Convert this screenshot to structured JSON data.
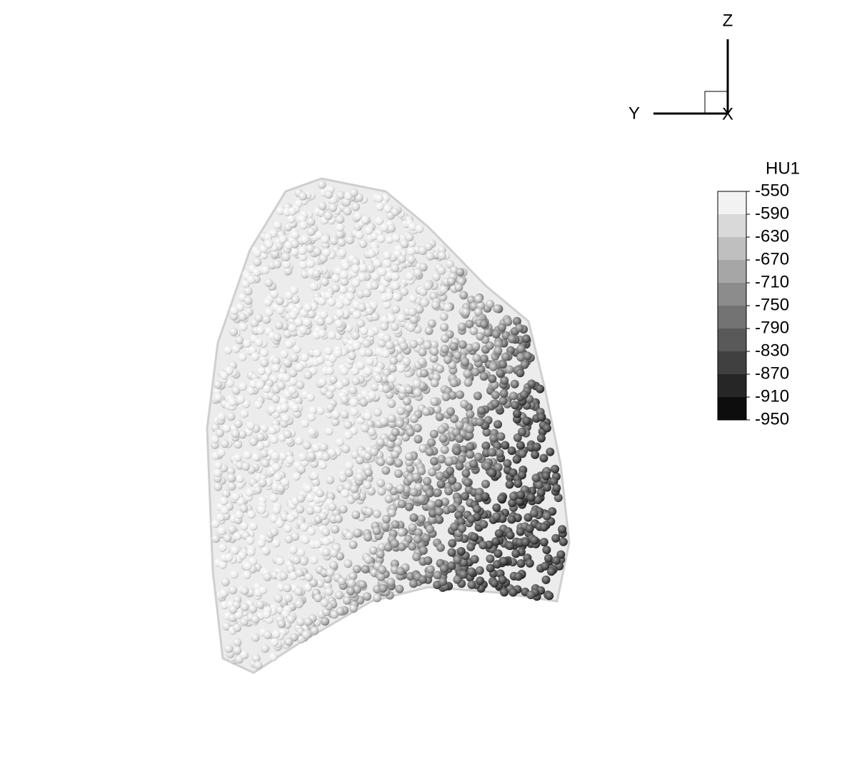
{
  "axes_triad": {
    "z_label": "Z",
    "y_label": "Y",
    "x_label": "X"
  },
  "colorbar": {
    "title": "HU1",
    "ticks": [
      -550,
      -590,
      -630,
      -670,
      -710,
      -750,
      -790,
      -830,
      -870,
      -910,
      -950
    ]
  }
}
